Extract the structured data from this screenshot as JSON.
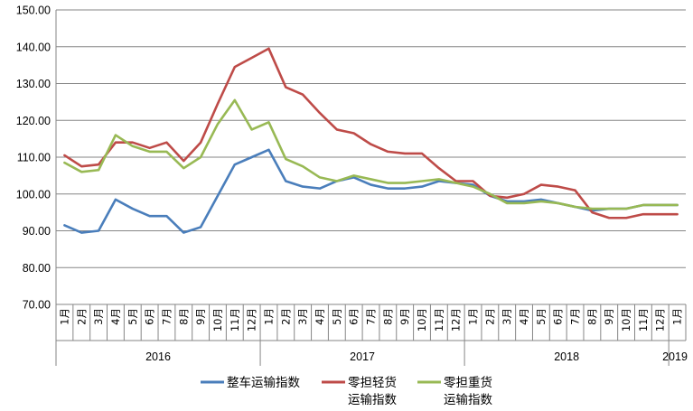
{
  "chart_data": {
    "type": "line",
    "title": "",
    "xlabel": "",
    "ylabel": "",
    "ylim": [
      70,
      150
    ],
    "yticks": [
      "70.00",
      "80.00",
      "90.00",
      "100.00",
      "110.00",
      "120.00",
      "130.00",
      "140.00",
      "150.00"
    ],
    "grid": "horizontal",
    "legend_position": "bottom",
    "categories": [
      "1月",
      "2月",
      "3月",
      "4月",
      "5月",
      "6月",
      "7月",
      "8月",
      "9月",
      "10月",
      "11月",
      "12月",
      "1月",
      "2月",
      "3月",
      "4月",
      "5月",
      "6月",
      "7月",
      "8月",
      "9月",
      "10月",
      "11月",
      "12月",
      "1月",
      "2月",
      "3月",
      "4月",
      "5月",
      "6月",
      "7月",
      "8月",
      "9月",
      "10月",
      "11月",
      "12月",
      "1月"
    ],
    "year_groups": [
      {
        "label": "2016",
        "start": 0,
        "end": 11
      },
      {
        "label": "2017",
        "start": 12,
        "end": 23
      },
      {
        "label": "2018",
        "start": 24,
        "end": 35
      },
      {
        "label": "2019",
        "start": 36,
        "end": 36
      }
    ],
    "series": [
      {
        "name": "整车运输指数",
        "name_lines": [
          "整车运输指数"
        ],
        "color": "#4a7ebb",
        "values": [
          91.5,
          89.5,
          90.0,
          98.5,
          96.0,
          94.0,
          94.0,
          89.5,
          91.0,
          99.5,
          108.0,
          110.0,
          112.0,
          103.5,
          102.0,
          101.5,
          103.5,
          104.5,
          102.5,
          101.5,
          101.5,
          102.0,
          103.5,
          103.0,
          102.5,
          99.5,
          98.0,
          98.0,
          98.5,
          97.5,
          96.5,
          95.5,
          96.0,
          96.0,
          97.0,
          97.0,
          97.0
        ]
      },
      {
        "name": "零担轻货运输指数",
        "name_lines": [
          "零担轻货",
          "运输指数"
        ],
        "color": "#be4b48",
        "values": [
          110.5,
          107.5,
          108.0,
          114.0,
          114.0,
          112.5,
          114.0,
          109.0,
          114.0,
          124.5,
          134.5,
          137.0,
          139.5,
          129.0,
          127.0,
          122.0,
          117.5,
          116.5,
          113.5,
          111.5,
          111.0,
          111.0,
          107.0,
          103.5,
          103.5,
          99.5,
          99.0,
          100.0,
          102.5,
          102.0,
          101.0,
          95.0,
          93.5,
          93.5,
          94.5,
          94.5,
          94.5
        ]
      },
      {
        "name": "零担重货运输指数",
        "name_lines": [
          "零担重货",
          "运输指数"
        ],
        "color": "#98b954",
        "values": [
          108.5,
          106.0,
          106.5,
          116.0,
          113.0,
          111.5,
          111.5,
          107.0,
          110.0,
          119.0,
          125.5,
          117.5,
          119.5,
          109.5,
          107.5,
          104.5,
          103.5,
          105.0,
          104.0,
          103.0,
          103.0,
          103.5,
          104.0,
          103.0,
          102.0,
          100.0,
          97.5,
          97.5,
          98.0,
          97.5,
          96.5,
          96.0,
          96.0,
          96.0,
          97.0,
          97.0,
          97.0
        ]
      }
    ]
  }
}
